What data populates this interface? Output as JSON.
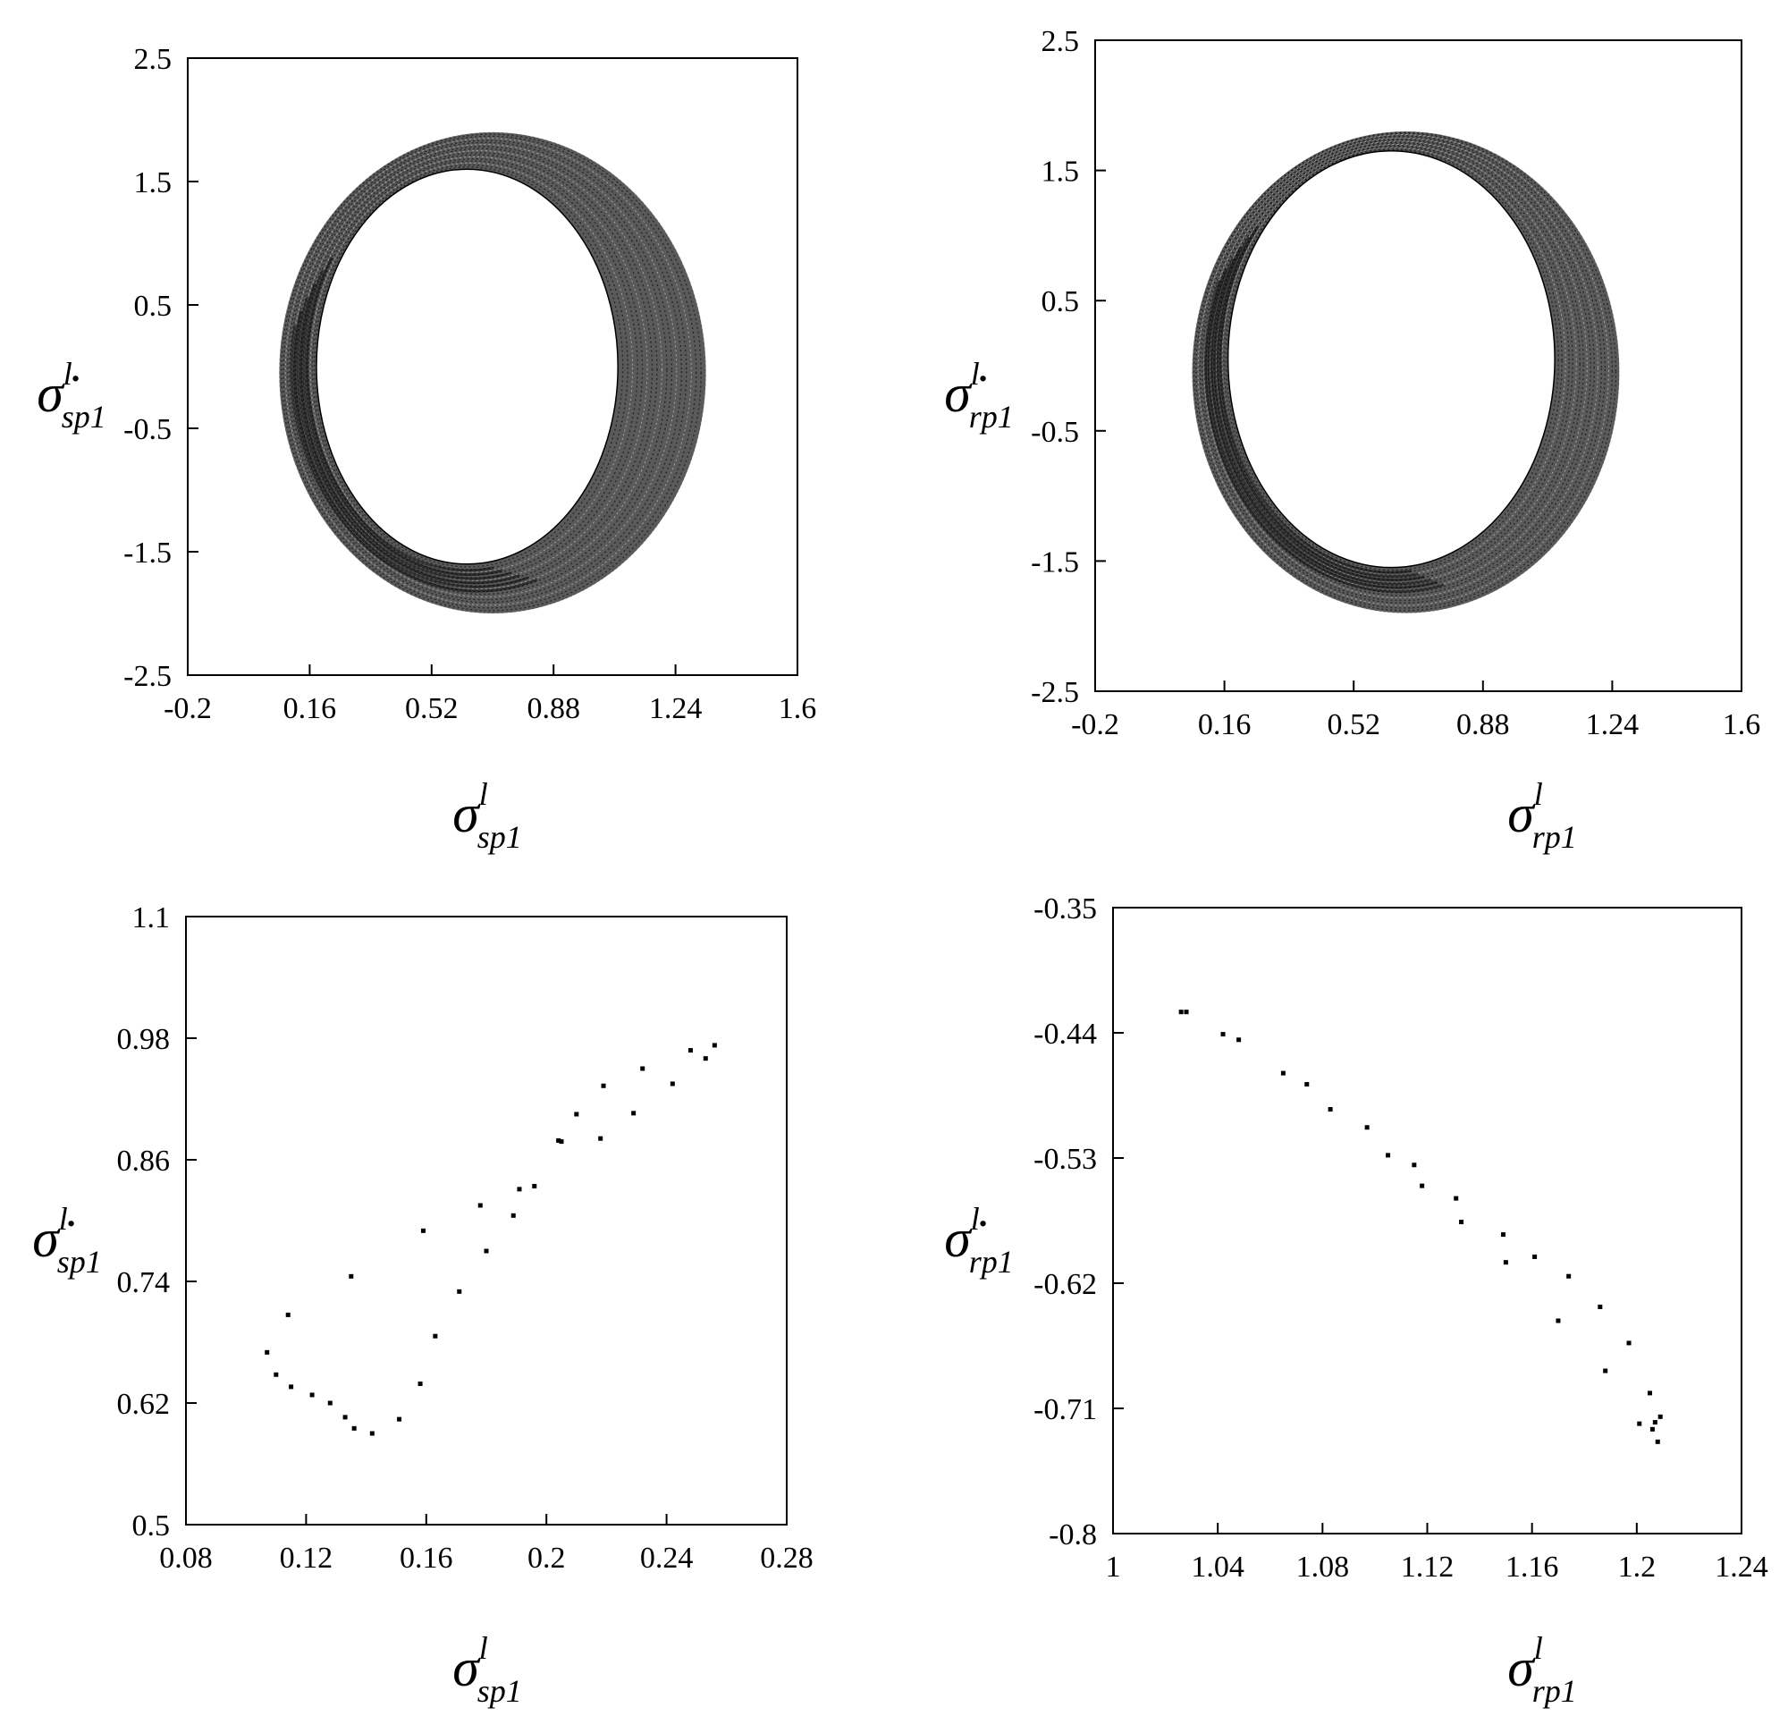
{
  "chart_data": [
    {
      "id": "phase-sp1",
      "type": "scatter",
      "title": "",
      "xlabel": {
        "symbol": "σ",
        "superscript": "l",
        "subscript": "sp1"
      },
      "ylabel": {
        "symbol": "σ̇",
        "superscript": "l",
        "subscript": "sp1"
      },
      "xlim": [
        -0.2,
        1.6
      ],
      "ylim": [
        -2.5,
        2.5
      ],
      "xticks": [
        "-0.2",
        "0.16",
        "0.52",
        "0.88",
        "1.24",
        "1.6"
      ],
      "yticks": [
        "2.5",
        "1.5",
        "0.5",
        "-0.5",
        "-1.5",
        "-2.5"
      ],
      "grid": false,
      "ring": {
        "outer_left": 0.07,
        "outer_right": 1.33,
        "outer_top": 1.9,
        "outer_bottom": -2.0,
        "inner_left": 0.18,
        "inner_right": 1.07,
        "inner_top": 1.6,
        "inner_bottom": -1.6
      }
    },
    {
      "id": "phase-rp1",
      "type": "scatter",
      "title": "",
      "xlabel": {
        "symbol": "σ",
        "superscript": "l",
        "subscript": "rp1"
      },
      "ylabel": {
        "symbol": "σ̇",
        "superscript": "l",
        "subscript": "rp1"
      },
      "xlim": [
        -0.2,
        1.6
      ],
      "ylim": [
        -2.5,
        2.5
      ],
      "xticks": [
        "-0.2",
        "0.16",
        "0.52",
        "0.88",
        "1.24",
        "1.6"
      ],
      "yticks": [
        "2.5",
        "1.5",
        "0.5",
        "-0.5",
        "-1.5",
        "-2.5"
      ],
      "grid": false,
      "ring": {
        "outer_left": 0.07,
        "outer_right": 1.26,
        "outer_top": 1.8,
        "outer_bottom": -1.9,
        "inner_left": 0.17,
        "inner_right": 1.08,
        "inner_top": 1.65,
        "inner_bottom": -1.55
      }
    },
    {
      "id": "poincare-sp1",
      "type": "scatter",
      "title": "",
      "xlabel": {
        "symbol": "σ",
        "superscript": "l",
        "subscript": "sp1"
      },
      "ylabel": {
        "symbol": "σ̇",
        "superscript": "l",
        "subscript": "sp1"
      },
      "xlim": [
        0.08,
        0.28
      ],
      "ylim": [
        0.5,
        1.1
      ],
      "xticks": [
        "0.08",
        "0.12",
        "0.16",
        "0.2",
        "0.24",
        "0.28"
      ],
      "yticks": [
        "1.1",
        "0.98",
        "0.86",
        "0.74",
        "0.62",
        "0.5"
      ],
      "grid": false,
      "x": [
        0.107,
        0.11,
        0.115,
        0.122,
        0.128,
        0.133,
        0.136,
        0.142,
        0.151,
        0.158,
        0.163,
        0.114,
        0.135,
        0.159,
        0.171,
        0.18,
        0.189,
        0.196,
        0.204,
        0.21,
        0.218,
        0.229,
        0.242,
        0.248,
        0.253,
        0.256,
        0.178,
        0.191,
        0.205,
        0.219,
        0.232
      ],
      "y": [
        0.67,
        0.648,
        0.636,
        0.628,
        0.62,
        0.606,
        0.595,
        0.59,
        0.604,
        0.639,
        0.686,
        0.707,
        0.745,
        0.79,
        0.73,
        0.77,
        0.805,
        0.834,
        0.879,
        0.905,
        0.881,
        0.906,
        0.935,
        0.968,
        0.96,
        0.973,
        0.815,
        0.831,
        0.878,
        0.933,
        0.95
      ]
    },
    {
      "id": "poincare-rp1",
      "type": "scatter",
      "title": "",
      "xlabel": {
        "symbol": "σ",
        "superscript": "l",
        "subscript": "rp1"
      },
      "ylabel": {
        "symbol": "σ̇",
        "superscript": "l",
        "subscript": "rp1"
      },
      "xlim": [
        1.0,
        1.24
      ],
      "ylim": [
        -0.8,
        -0.35
      ],
      "xticks": [
        "1",
        "1.04",
        "1.08",
        "1.12",
        "1.16",
        "1.2",
        "1.24"
      ],
      "yticks": [
        "-0.35",
        "-0.44",
        "-0.53",
        "-0.62",
        "-0.71",
        "-0.8"
      ],
      "grid": false,
      "x": [
        1.026,
        1.028,
        1.042,
        1.048,
        1.065,
        1.074,
        1.083,
        1.097,
        1.105,
        1.115,
        1.118,
        1.131,
        1.133,
        1.149,
        1.15,
        1.161,
        1.17,
        1.174,
        1.186,
        1.188,
        1.197,
        1.201,
        1.205,
        1.206,
        1.207,
        1.208,
        1.209
      ],
      "y": [
        -0.425,
        -0.425,
        -0.441,
        -0.445,
        -0.469,
        -0.477,
        -0.495,
        -0.508,
        -0.528,
        -0.535,
        -0.55,
        -0.559,
        -0.576,
        -0.585,
        -0.605,
        -0.601,
        -0.647,
        -0.615,
        -0.637,
        -0.683,
        -0.663,
        -0.721,
        -0.699,
        -0.725,
        -0.72,
        -0.734,
        -0.716
      ]
    }
  ]
}
